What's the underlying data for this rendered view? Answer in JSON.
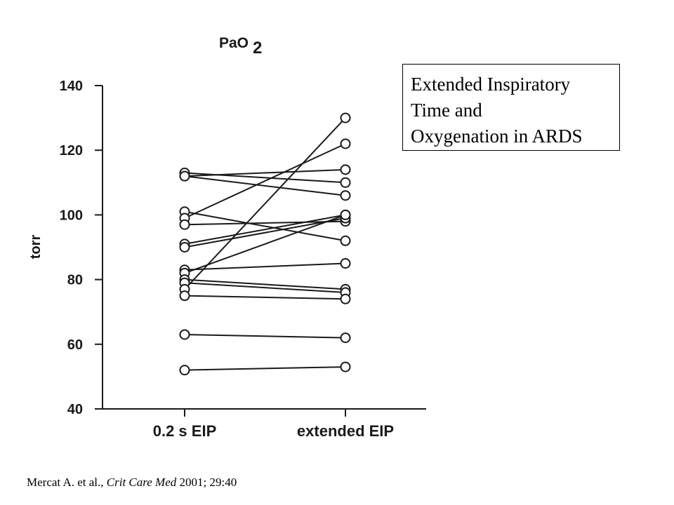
{
  "chart_data": {
    "type": "line",
    "title": "PaO",
    "title_subscript": "2",
    "ylabel": "torr",
    "ylim": [
      40,
      140
    ],
    "yticks": [
      40,
      60,
      80,
      100,
      120,
      140
    ],
    "categories": [
      "0.2 s EIP",
      "extended EIP"
    ],
    "grid": false,
    "legend": "none",
    "series": [
      {
        "values": [
          113,
          110
        ]
      },
      {
        "values": [
          112,
          114
        ]
      },
      {
        "values": [
          112,
          106
        ]
      },
      {
        "values": [
          101,
          92
        ]
      },
      {
        "values": [
          99,
          122
        ]
      },
      {
        "values": [
          97,
          98
        ]
      },
      {
        "values": [
          91,
          100
        ]
      },
      {
        "values": [
          90,
          99
        ]
      },
      {
        "values": [
          83,
          85
        ]
      },
      {
        "values": [
          82,
          100
        ]
      },
      {
        "values": [
          80,
          77
        ]
      },
      {
        "values": [
          79,
          76
        ]
      },
      {
        "values": [
          77,
          130
        ]
      },
      {
        "values": [
          75,
          74
        ]
      },
      {
        "values": [
          63,
          62
        ]
      },
      {
        "values": [
          52,
          53
        ]
      }
    ]
  },
  "info_box": {
    "line1": "Extended Inspiratory",
    "line2": "Time and",
    "line3": "Oxygenation in ARDS"
  },
  "citation": {
    "authors": "Mercat A. et al., ",
    "journal": "Crit Care Med",
    "details": " 2001; 29:40"
  }
}
